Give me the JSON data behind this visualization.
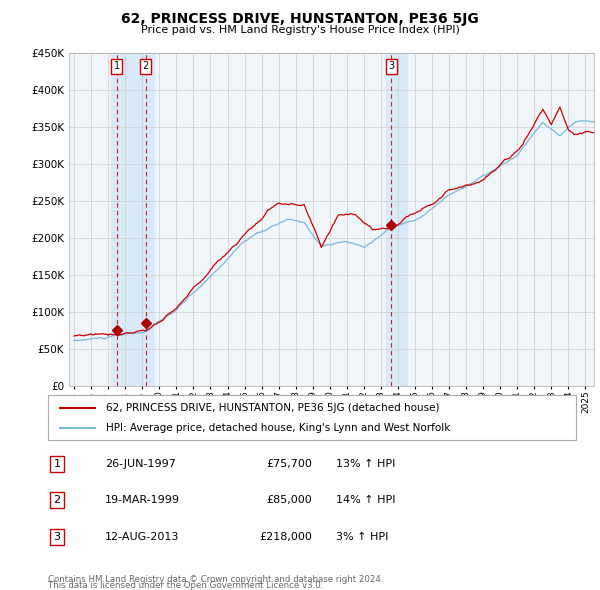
{
  "title": "62, PRINCESS DRIVE, HUNSTANTON, PE36 5JG",
  "subtitle": "Price paid vs. HM Land Registry's House Price Index (HPI)",
  "legend_line1": "62, PRINCESS DRIVE, HUNSTANTON, PE36 5JG (detached house)",
  "legend_line2": "HPI: Average price, detached house, King's Lynn and West Norfolk",
  "footer1": "Contains HM Land Registry data © Crown copyright and database right 2024.",
  "footer2": "This data is licensed under the Open Government Licence v3.0.",
  "transactions": [
    {
      "num": 1,
      "date": "26-JUN-1997",
      "price": 75700,
      "pct": "13%",
      "dir": "↑",
      "year": 1997.49
    },
    {
      "num": 2,
      "date": "19-MAR-1999",
      "price": 85000,
      "pct": "14%",
      "dir": "↑",
      "year": 1999.21
    },
    {
      "num": 3,
      "date": "12-AUG-2013",
      "price": 218000,
      "pct": "3%",
      "dir": "↑",
      "year": 2013.62
    }
  ],
  "hpi_color": "#7ab8d9",
  "price_color": "#cc0000",
  "marker_color": "#aa0000",
  "vline_color": "#cc0000",
  "shade_color": "#ddeeff",
  "grid_color": "#cccccc",
  "bg_color": "#f0f4f8",
  "ylim": [
    0,
    450000
  ],
  "yticks": [
    0,
    50000,
    100000,
    150000,
    200000,
    250000,
    300000,
    350000,
    400000,
    450000
  ],
  "xlim_start": 1994.7,
  "xlim_end": 2025.5,
  "xtick_years": [
    1995,
    1996,
    1997,
    1998,
    1999,
    2000,
    2001,
    2002,
    2003,
    2004,
    2005,
    2006,
    2007,
    2008,
    2009,
    2010,
    2011,
    2012,
    2013,
    2014,
    2015,
    2016,
    2017,
    2018,
    2019,
    2020,
    2021,
    2022,
    2023,
    2024,
    2025
  ]
}
